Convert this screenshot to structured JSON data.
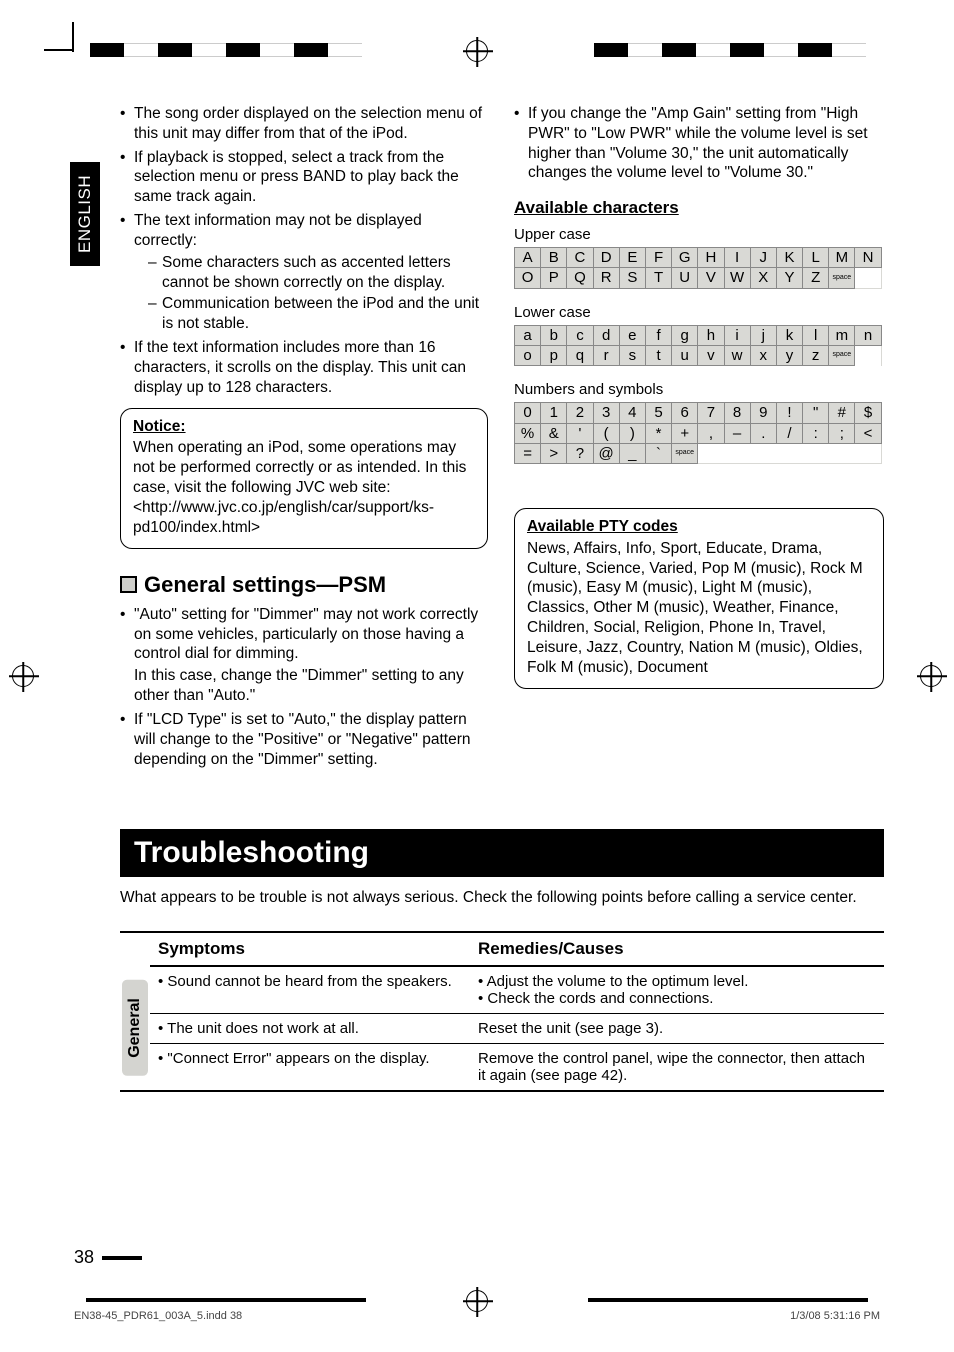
{
  "page": {
    "number": "38",
    "footer_left": "EN38-45_PDR61_003A_5.indd   38",
    "footer_right": "1/3/08   5:31:16 PM"
  },
  "sidetab": "ENGLISH",
  "col1": {
    "bullets": [
      "The song order displayed on the selection menu of this unit may differ from that of the iPod.",
      "If playback is stopped, select a track from the selection menu or press BAND to play back the same track again.",
      "The text information may not be displayed correctly:",
      "If the text information includes more than 16 characters, it scrolls on the display. This unit can display up to 128 characters."
    ],
    "dashes": [
      "Some characters such as accented letters cannot be shown correctly on the display.",
      "Communication between the iPod and the unit is not stable."
    ],
    "notice_title": "Notice:",
    "notice_body": "When operating an iPod, some operations may not be performed correctly or as intended. In this case, visit the following JVC web site: <http://www.jvc.co.jp/english/car/support/ks-pd100/index.html>",
    "h2": "General settings—PSM",
    "psm": [
      "\"Auto\" setting for \"Dimmer\" may not work correctly on some vehicles, particularly on those having a control dial for dimming.",
      "If \"LCD Type\" is set to \"Auto,\" the display pattern will change to the \"Positive\" or \"Negative\" pattern depending on the \"Dimmer\" setting."
    ],
    "psm_note": "In this case, change the \"Dimmer\" setting to any other than \"Auto.\""
  },
  "col2": {
    "bullet": "If you change the \"Amp Gain\" setting from \"High PWR\" to \"Low PWR\" while the volume level is set higher than \"Volume 30,\" the unit automatically changes the volume level to \"Volume 30.\"",
    "avail_h": "Available characters",
    "upper_label": "Upper case",
    "lower_label": "Lower case",
    "num_label": "Numbers and symbols",
    "upper": [
      "A",
      "B",
      "C",
      "D",
      "E",
      "F",
      "G",
      "H",
      "I",
      "J",
      "K",
      "L",
      "M",
      "N",
      "O",
      "P",
      "Q",
      "R",
      "S",
      "T",
      "U",
      "V",
      "W",
      "X",
      "Y",
      "Z",
      "space"
    ],
    "lower": [
      "a",
      "b",
      "c",
      "d",
      "e",
      "f",
      "g",
      "h",
      "i",
      "j",
      "k",
      "l",
      "m",
      "n",
      "o",
      "p",
      "q",
      "r",
      "s",
      "t",
      "u",
      "v",
      "w",
      "x",
      "y",
      "z",
      "space"
    ],
    "nums": [
      "0",
      "1",
      "2",
      "3",
      "4",
      "5",
      "6",
      "7",
      "8",
      "9",
      "!",
      "\"",
      "#",
      "$",
      "%",
      "&",
      "'",
      "(",
      ")",
      "*",
      "+",
      ",",
      "–",
      ".",
      "/",
      ":",
      ";",
      "<",
      "=",
      ">",
      "?",
      "@",
      "_",
      "`",
      "space"
    ],
    "pty_title": "Available PTY codes",
    "pty_body": "News, Affairs, Info, Sport, Educate, Drama, Culture, Science, Varied, Pop M (music), Rock M (music), Easy M (music), Light M (music), Classics, Other M (music), Weather, Finance, Children, Social, Religion, Phone In, Travel, Leisure, Jazz, Country, Nation M (music), Oldies, Folk M (music), Document"
  },
  "trouble": {
    "title": "Troubleshooting",
    "lead": "What appears to be trouble is not always serious. Check the following points before calling a service center.",
    "rot": "General",
    "head_sym": "Symptoms",
    "head_rem": "Remedies/Causes",
    "rows": [
      {
        "s": "Sound cannot be heard from the speakers.",
        "r1": "Adjust the volume to the optimum level.",
        "r2": "Check the cords and connections."
      },
      {
        "s": "The unit does not work at all.",
        "r": "Reset the unit (see page 3)."
      },
      {
        "s": "\"Connect Error\" appears on the display.",
        "r": "Remove the control panel, wipe the connector, then attach it again (see page 42)."
      }
    ]
  }
}
